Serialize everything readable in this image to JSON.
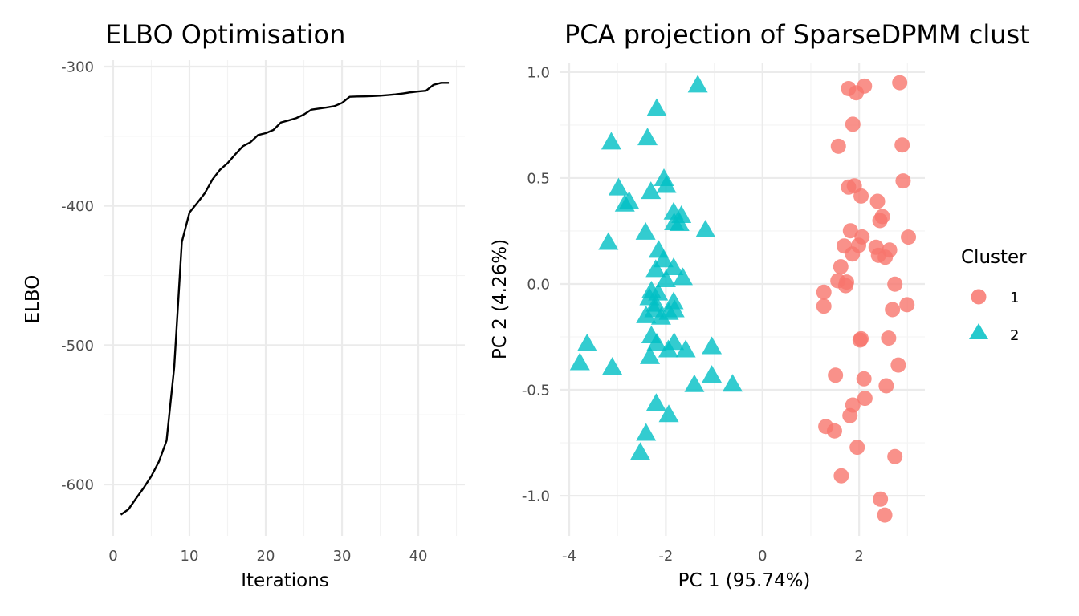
{
  "chart_data": [
    {
      "type": "line",
      "title": "ELBO Optimisation",
      "xlabel": "Iterations",
      "ylabel": "ELBO",
      "xlim": [
        -1.26,
        46.1
      ],
      "ylim": [
        -636.8,
        -295.4
      ],
      "xticks": [
        0,
        10,
        20,
        30,
        40
      ],
      "xtick_labels": [
        "0",
        "10",
        "20",
        "30",
        "40"
      ],
      "yticks": [
        -300,
        -400,
        -500,
        -600
      ],
      "ytick_labels": [
        "-300",
        "-400",
        "-500",
        "-600"
      ],
      "grid": true,
      "series": [
        {
          "name": "ELBO",
          "color": "#000000",
          "x": [
            1,
            2,
            3,
            4,
            5,
            6,
            7,
            8,
            9,
            10,
            11,
            12,
            13,
            14,
            15,
            16,
            17,
            18,
            19,
            20,
            21,
            22,
            23,
            24,
            25,
            26,
            27,
            28,
            29,
            30,
            31,
            32,
            33,
            34,
            35,
            36,
            37,
            38,
            39,
            40,
            41,
            42,
            43,
            44
          ],
          "y": [
            -621.6,
            -617.8,
            -610.0,
            -602.4,
            -594.0,
            -583.5,
            -568.5,
            -516.0,
            -426.0,
            -404.8,
            -398.0,
            -391.0,
            -381.2,
            -374.1,
            -369.3,
            -363.0,
            -357.2,
            -354.3,
            -349.1,
            -347.8,
            -345.5,
            -340.1,
            -338.6,
            -337.0,
            -334.4,
            -330.9,
            -330.1,
            -329.3,
            -328.4,
            -326.1,
            -321.7,
            -321.5,
            -321.4,
            -321.2,
            -320.9,
            -320.5,
            -320.0,
            -319.3,
            -318.5,
            -317.9,
            -317.4,
            -313.1,
            -311.7,
            -311.7
          ]
        }
      ]
    },
    {
      "type": "scatter",
      "title": "PCA projection of SparseDPMM clust",
      "xlabel": "PC 1 (95.74%)",
      "ylabel": "PC 2 (4.26%)",
      "xlim": [
        -4.2,
        3.36
      ],
      "ylim": [
        -1.189,
        1.045
      ],
      "xticks": [
        -4,
        -2,
        0,
        2
      ],
      "xtick_labels": [
        "-4",
        "-2",
        "0",
        "2"
      ],
      "yticks": [
        1.0,
        0.5,
        0.0,
        -0.5,
        -1.0
      ],
      "ytick_labels": [
        "1.0",
        "0.5",
        "0.0",
        "-0.5",
        "-1.0"
      ],
      "grid": true,
      "legend": {
        "title": "Cluster",
        "placement": "right",
        "entries": [
          {
            "label": "1",
            "shape": "circle",
            "color": "#F8766D"
          },
          {
            "label": "2",
            "shape": "triangle",
            "color": "#00BFC4"
          }
        ]
      },
      "series": [
        {
          "name": "1",
          "shape": "circle",
          "color": "#F8766D",
          "x": [
            1.78,
            2.11,
            1.94,
            2.84,
            1.87,
            1.57,
            2.89,
            2.91,
            1.78,
            1.9,
            2.04,
            2.38,
            2.48,
            2.43,
            1.82,
            2.06,
            3.02,
            1.69,
            1.99,
            2.35,
            2.63,
            1.86,
            2.4,
            2.54,
            1.62,
            2.74,
            1.56,
            1.74,
            1.72,
            1.27,
            1.27,
            2.99,
            2.69,
            2.04,
            2.02,
            2.61,
            2.81,
            1.51,
            2.1,
            2.56,
            2.12,
            1.87,
            1.81,
            1.31,
            1.49,
            1.96,
            2.74,
            1.63,
            2.44,
            2.53
          ],
          "y": [
            0.922,
            0.934,
            0.902,
            0.95,
            0.754,
            0.65,
            0.656,
            0.486,
            0.457,
            0.463,
            0.415,
            0.39,
            0.318,
            0.299,
            0.251,
            0.222,
            0.221,
            0.179,
            0.182,
            0.173,
            0.16,
            0.141,
            0.135,
            0.126,
            0.081,
            -0.001,
            0.015,
            0.009,
            -0.008,
            -0.039,
            -0.105,
            -0.098,
            -0.121,
            -0.259,
            -0.265,
            -0.256,
            -0.383,
            -0.431,
            -0.448,
            -0.481,
            -0.54,
            -0.572,
            -0.622,
            -0.673,
            -0.694,
            -0.771,
            -0.815,
            -0.906,
            -1.016,
            -1.091
          ]
        },
        {
          "name": "2",
          "shape": "triangle",
          "color": "#00BFC4",
          "x": [
            -1.34,
            -2.19,
            -3.13,
            -2.38,
            -2.04,
            -1.99,
            -2.98,
            -2.31,
            -2.76,
            -2.85,
            -1.84,
            -1.68,
            -1.83,
            -1.72,
            -1.18,
            -2.42,
            -3.19,
            -2.15,
            -2.05,
            -2.21,
            -1.84,
            -1.65,
            -2.0,
            -2.3,
            -2.16,
            -2.34,
            -2.21,
            -1.84,
            -1.82,
            -2.24,
            -2.41,
            -1.94,
            -2.1,
            -2.3,
            -2.19,
            -1.83,
            -3.63,
            -1.05,
            -1.95,
            -1.59,
            -2.33,
            -3.78,
            -3.11,
            -1.05,
            -1.41,
            -0.62,
            -2.2,
            -1.94,
            -2.41,
            -2.53
          ],
          "y": [
            0.937,
            0.826,
            0.668,
            0.688,
            0.495,
            0.463,
            0.451,
            0.434,
            0.388,
            0.375,
            0.337,
            0.321,
            0.287,
            0.283,
            0.253,
            0.242,
            0.194,
            0.157,
            0.112,
            0.066,
            0.075,
            0.028,
            0.018,
            -0.035,
            -0.045,
            -0.067,
            -0.098,
            -0.086,
            -0.124,
            -0.124,
            -0.152,
            -0.136,
            -0.159,
            -0.247,
            -0.281,
            -0.278,
            -0.285,
            -0.298,
            -0.313,
            -0.313,
            -0.345,
            -0.374,
            -0.395,
            -0.433,
            -0.477,
            -0.475,
            -0.566,
            -0.619,
            -0.707,
            -0.797
          ]
        }
      ]
    }
  ]
}
